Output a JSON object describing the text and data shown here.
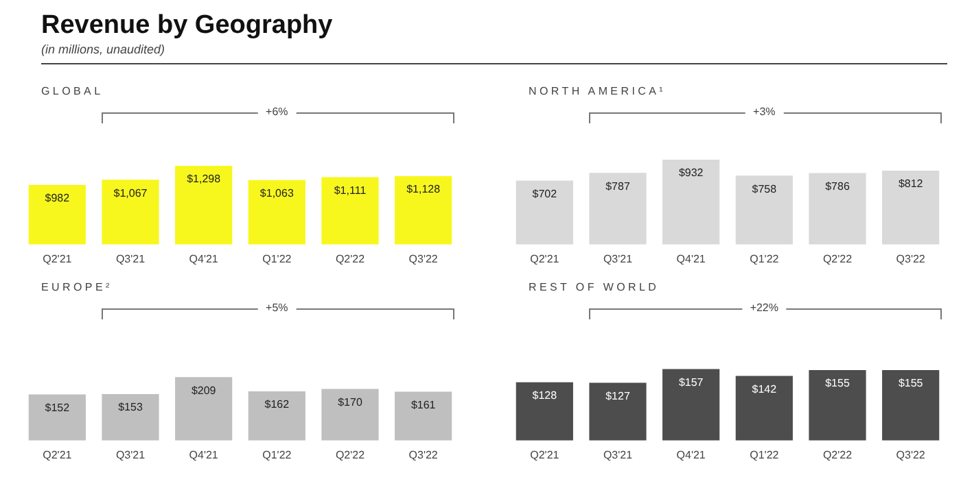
{
  "chart_data": [
    {
      "type": "other",
      "title": "Revenue by Geography",
      "subtitle": "(in millions, unaudited)"
    },
    {
      "type": "bar",
      "title": "GLOBAL",
      "categories": [
        "Q2'21",
        "Q3'21",
        "Q4'21",
        "Q1'22",
        "Q2'22",
        "Q3'22"
      ],
      "values": [
        982,
        1067,
        1298,
        1063,
        1111,
        1128
      ],
      "value_labels": [
        "$982",
        "$1,067",
        "$1,298",
        "$1,063",
        "$1,111",
        "$1,128"
      ],
      "color": "#f7f71e",
      "tick_labels": "x",
      "annotations": [
        "+6%"
      ]
    },
    {
      "type": "bar",
      "title": "NORTH AMERICA¹",
      "categories": [
        "Q2'21",
        "Q3'21",
        "Q4'21",
        "Q1'22",
        "Q2'22",
        "Q3'22"
      ],
      "values": [
        702,
        787,
        932,
        758,
        786,
        812
      ],
      "value_labels": [
        "$702",
        "$787",
        "$932",
        "$758",
        "$786",
        "$812"
      ],
      "color": "#d9d9d9",
      "tick_labels": "x",
      "annotations": [
        "+3%"
      ]
    },
    {
      "type": "bar",
      "title": "EUROPE²",
      "categories": [
        "Q2'21",
        "Q3'21",
        "Q4'21",
        "Q1'22",
        "Q2'22",
        "Q3'22"
      ],
      "values": [
        152,
        153,
        209,
        162,
        170,
        161
      ],
      "value_labels": [
        "$152",
        "$153",
        "$209",
        "$162",
        "$170",
        "$161"
      ],
      "color": "#bfbfbf",
      "tick_labels": "x",
      "annotations": [
        "+5%"
      ]
    },
    {
      "type": "bar",
      "title": "REST OF WORLD",
      "categories": [
        "Q2'21",
        "Q3'21",
        "Q4'21",
        "Q1'22",
        "Q2'22",
        "Q3'22"
      ],
      "values": [
        128,
        127,
        157,
        142,
        155,
        155
      ],
      "value_labels": [
        "$128",
        "$127",
        "$157",
        "$142",
        "$155",
        "$155"
      ],
      "color": "#4d4d4d",
      "tick_labels": "x",
      "annotations": [
        "+22%"
      ]
    }
  ]
}
